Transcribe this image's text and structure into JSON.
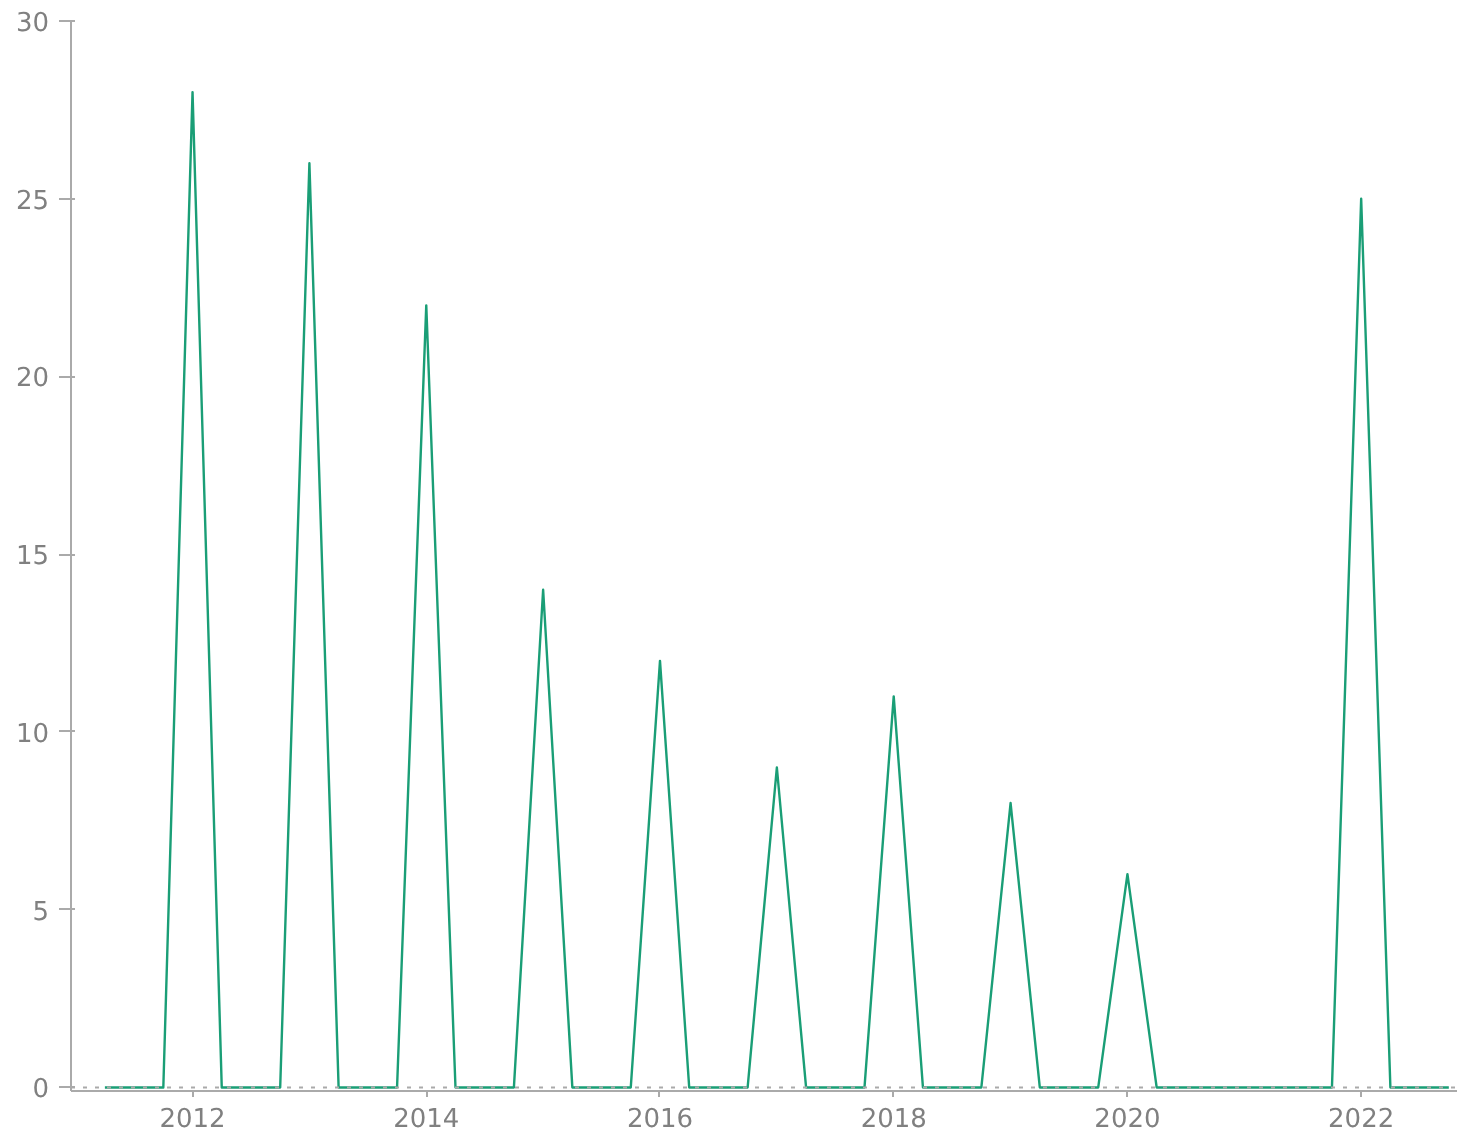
{
  "chart_data": {
    "type": "line",
    "x": [
      2011.25,
      2011.75,
      2012,
      2012.25,
      2012.75,
      2013,
      2013.25,
      2013.75,
      2014,
      2014.25,
      2014.75,
      2015,
      2015.25,
      2015.75,
      2016,
      2016.25,
      2016.75,
      2017,
      2017.25,
      2017.75,
      2018,
      2018.25,
      2018.75,
      2019,
      2019.25,
      2019.75,
      2020,
      2020.25,
      2020.75,
      2021,
      2021.25,
      2021.75,
      2022,
      2022.25,
      2022.75
    ],
    "series": [
      {
        "color": "#1a9e76",
        "values": [
          0,
          0,
          28,
          0,
          0,
          26,
          0,
          0,
          22,
          0,
          0,
          14,
          0,
          0,
          12,
          0,
          0,
          9,
          0,
          0,
          11,
          0,
          0,
          8,
          0,
          0,
          6,
          0,
          0,
          0,
          0,
          0,
          25,
          0,
          0
        ]
      }
    ],
    "xlim": [
      2010.96,
      2022.82
    ],
    "ylim": [
      -0.1,
      30
    ],
    "xticks": [
      2012,
      2014,
      2016,
      2018,
      2020,
      2022
    ],
    "yticks": [
      0,
      5,
      10,
      15,
      20,
      25,
      30
    ],
    "ref_lines": [
      {
        "axis": "y",
        "value": 0,
        "color": "#aaaaaa",
        "line_style": "dotted"
      }
    ],
    "grid": false,
    "marker": "none",
    "line_style": "solid"
  }
}
